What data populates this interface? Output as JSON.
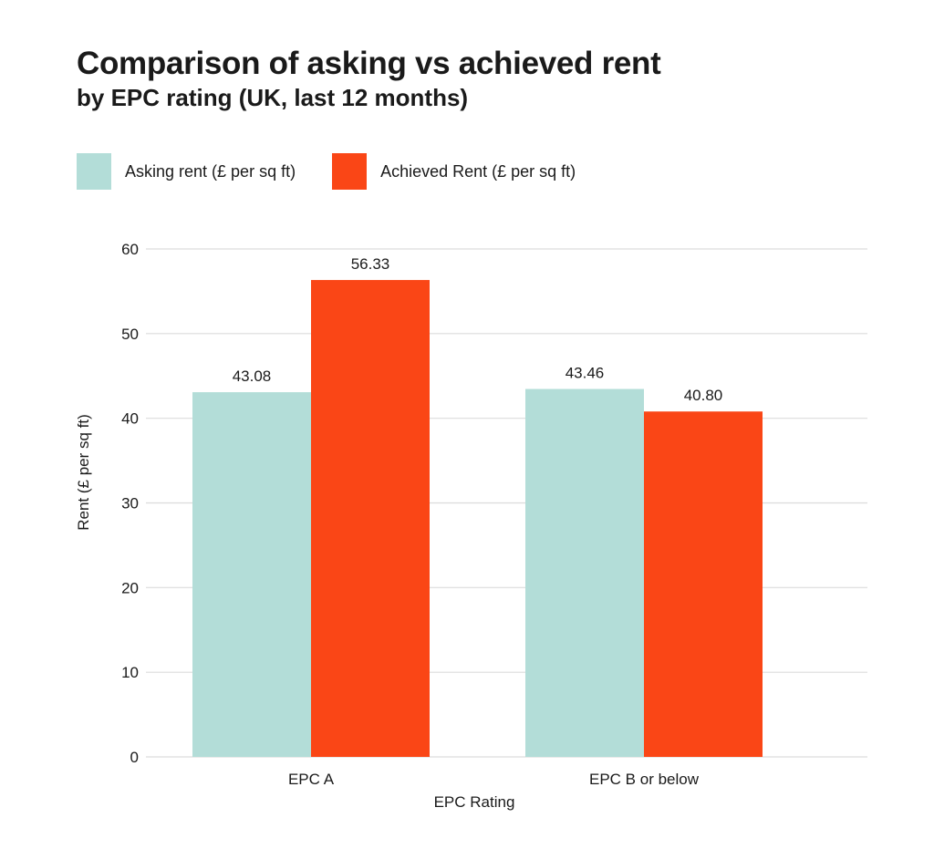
{
  "header": {
    "title": "Comparison of asking vs achieved rent",
    "subtitle": "by EPC rating (UK, last 12 months)"
  },
  "colors": {
    "asking": "#b3ddd8",
    "achieved": "#fa4616",
    "grid": "#dcdcdc",
    "text": "#1a1a1a"
  },
  "chart_data": {
    "type": "bar",
    "title": "Comparison of asking vs achieved rent",
    "subtitle": "by EPC rating (UK, last 12 months)",
    "categories": [
      "EPC A",
      "EPC B or below"
    ],
    "series": [
      {
        "name": "Asking rent (£ per sq ft)",
        "values": [
          43.08,
          43.46
        ],
        "labels": [
          "43.08",
          "43.46"
        ]
      },
      {
        "name": "Achieved Rent (£ per sq ft)",
        "values": [
          56.33,
          40.8
        ],
        "labels": [
          "56.33",
          "40.80"
        ]
      }
    ],
    "xlabel": "EPC Rating",
    "ylabel": "Rent (£ per sq ft)",
    "ylim": [
      0,
      60
    ],
    "yticks": [
      0,
      10,
      20,
      30,
      40,
      50,
      60
    ],
    "grid": true,
    "legend": "top-left"
  }
}
